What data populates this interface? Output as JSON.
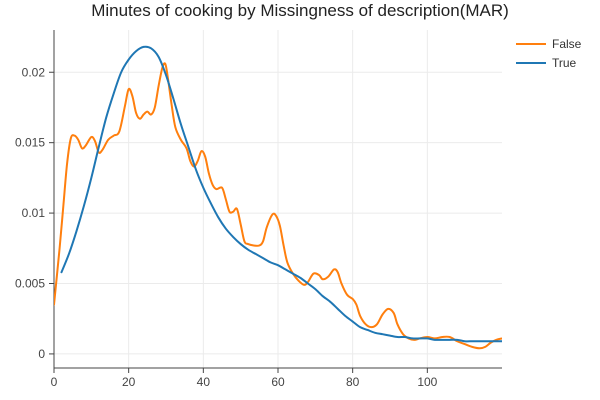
{
  "chart_data": {
    "type": "line",
    "title": "Minutes of cooking by Missingness of description(MAR)",
    "xlabel": "",
    "ylabel": "",
    "xlim": [
      0,
      120
    ],
    "ylim": [
      -0.001,
      0.023
    ],
    "xticks": [
      0,
      20,
      40,
      60,
      80,
      100
    ],
    "yticks": [
      0,
      0.005,
      0.01,
      0.015,
      0.02
    ],
    "ytick_labels": [
      "0",
      "0.005",
      "0.01",
      "0.015",
      "0.02"
    ],
    "grid": true,
    "legend_position": "top-right",
    "series": [
      {
        "name": "False",
        "color": "#ff7f0e",
        "points": [
          [
            0,
            0.0035
          ],
          [
            1.5,
            0.0075
          ],
          [
            2.5,
            0.0105
          ],
          [
            3.5,
            0.0135
          ],
          [
            4.5,
            0.0153
          ],
          [
            5.5,
            0.0155
          ],
          [
            6.5,
            0.0152
          ],
          [
            7.5,
            0.0146
          ],
          [
            8.5,
            0.0148
          ],
          [
            10,
            0.0154
          ],
          [
            11,
            0.0151
          ],
          [
            12,
            0.0143
          ],
          [
            13,
            0.0145
          ],
          [
            14.5,
            0.0152
          ],
          [
            16,
            0.0155
          ],
          [
            17.5,
            0.0158
          ],
          [
            19,
            0.0176
          ],
          [
            20,
            0.0188
          ],
          [
            21,
            0.0183
          ],
          [
            22,
            0.0171
          ],
          [
            23,
            0.0167
          ],
          [
            24,
            0.017
          ],
          [
            25,
            0.0172
          ],
          [
            26,
            0.017
          ],
          [
            27,
            0.0175
          ],
          [
            28,
            0.019
          ],
          [
            29,
            0.0203
          ],
          [
            29.8,
            0.0206
          ],
          [
            30.5,
            0.0196
          ],
          [
            31.5,
            0.0177
          ],
          [
            32.5,
            0.0161
          ],
          [
            34,
            0.0152
          ],
          [
            35.5,
            0.0146
          ],
          [
            36.5,
            0.0137
          ],
          [
            37.5,
            0.0133
          ],
          [
            38.5,
            0.0137
          ],
          [
            39.5,
            0.0144
          ],
          [
            40.5,
            0.014
          ],
          [
            41.5,
            0.0128
          ],
          [
            42.5,
            0.012
          ],
          [
            43.5,
            0.0117
          ],
          [
            45,
            0.0118
          ],
          [
            46,
            0.011
          ],
          [
            47,
            0.0101
          ],
          [
            48,
            0.0101
          ],
          [
            49,
            0.0103
          ],
          [
            50,
            0.0092
          ],
          [
            51,
            0.008
          ],
          [
            52,
            0.0078
          ],
          [
            53.5,
            0.0077
          ],
          [
            55,
            0.0077
          ],
          [
            56,
            0.008
          ],
          [
            57,
            0.009
          ],
          [
            58.5,
            0.0099
          ],
          [
            59.5,
            0.0098
          ],
          [
            60.5,
            0.0091
          ],
          [
            61.5,
            0.0077
          ],
          [
            62.5,
            0.0065
          ],
          [
            64,
            0.0057
          ],
          [
            65.5,
            0.0052
          ],
          [
            67,
            0.0049
          ],
          [
            68,
            0.0051
          ],
          [
            69.5,
            0.0057
          ],
          [
            71,
            0.0056
          ],
          [
            72,
            0.0053
          ],
          [
            73.5,
            0.0055
          ],
          [
            75,
            0.006
          ],
          [
            76,
            0.0058
          ],
          [
            77,
            0.005
          ],
          [
            78.5,
            0.0042
          ],
          [
            80,
            0.0039
          ],
          [
            81,
            0.0035
          ],
          [
            82,
            0.0027
          ],
          [
            83.5,
            0.0021
          ],
          [
            85,
            0.0019
          ],
          [
            86.5,
            0.0021
          ],
          [
            88,
            0.0028
          ],
          [
            89.5,
            0.0032
          ],
          [
            91,
            0.0029
          ],
          [
            92,
            0.0021
          ],
          [
            93.5,
            0.0014
          ],
          [
            95,
            0.0011
          ],
          [
            96.5,
            0.001
          ],
          [
            98,
            0.0011
          ],
          [
            100,
            0.0012
          ],
          [
            102,
            0.0011
          ],
          [
            104,
            0.0012
          ],
          [
            106,
            0.0012
          ],
          [
            108,
            0.0009
          ],
          [
            110,
            0.0007
          ],
          [
            112,
            0.0005
          ],
          [
            114,
            0.0004
          ],
          [
            115.5,
            0.0005
          ],
          [
            117,
            0.0008
          ],
          [
            118.5,
            0.001
          ],
          [
            120,
            0.0011
          ]
        ]
      },
      {
        "name": "True",
        "color": "#1f77b4",
        "points": [
          [
            2,
            0.0058
          ],
          [
            4,
            0.0071
          ],
          [
            6,
            0.0087
          ],
          [
            8,
            0.0105
          ],
          [
            10,
            0.0125
          ],
          [
            12,
            0.0147
          ],
          [
            14,
            0.0168
          ],
          [
            16,
            0.0185
          ],
          [
            18,
            0.02
          ],
          [
            20,
            0.0209
          ],
          [
            22,
            0.0215
          ],
          [
            24,
            0.0218
          ],
          [
            26,
            0.0217
          ],
          [
            28,
            0.0211
          ],
          [
            30,
            0.0198
          ],
          [
            32,
            0.0181
          ],
          [
            34,
            0.0163
          ],
          [
            36,
            0.0147
          ],
          [
            38,
            0.0131
          ],
          [
            40,
            0.0118
          ],
          [
            42,
            0.0107
          ],
          [
            44,
            0.0097
          ],
          [
            46,
            0.0089
          ],
          [
            48,
            0.0083
          ],
          [
            50,
            0.0078
          ],
          [
            52,
            0.0074
          ],
          [
            54,
            0.0071
          ],
          [
            56,
            0.0068
          ],
          [
            58,
            0.0065
          ],
          [
            60,
            0.0063
          ],
          [
            62,
            0.006
          ],
          [
            64,
            0.0057
          ],
          [
            66,
            0.0054
          ],
          [
            68,
            0.005
          ],
          [
            70,
            0.0046
          ],
          [
            72,
            0.0041
          ],
          [
            74,
            0.0037
          ],
          [
            76,
            0.0032
          ],
          [
            78,
            0.0027
          ],
          [
            80,
            0.0023
          ],
          [
            82,
            0.0019
          ],
          [
            84,
            0.0017
          ],
          [
            86,
            0.0015
          ],
          [
            88,
            0.0014
          ],
          [
            90,
            0.0013
          ],
          [
            92,
            0.0012
          ],
          [
            94,
            0.0012
          ],
          [
            96,
            0.0011
          ],
          [
            98,
            0.0011
          ],
          [
            100,
            0.0011
          ],
          [
            102,
            0.001
          ],
          [
            104,
            0.001
          ],
          [
            106,
            0.001
          ],
          [
            108,
            0.001
          ],
          [
            110,
            0.0009
          ],
          [
            112,
            0.0009
          ],
          [
            114,
            0.0009
          ],
          [
            116,
            0.0009
          ],
          [
            118,
            0.0009
          ],
          [
            120,
            0.0009
          ]
        ]
      }
    ]
  }
}
